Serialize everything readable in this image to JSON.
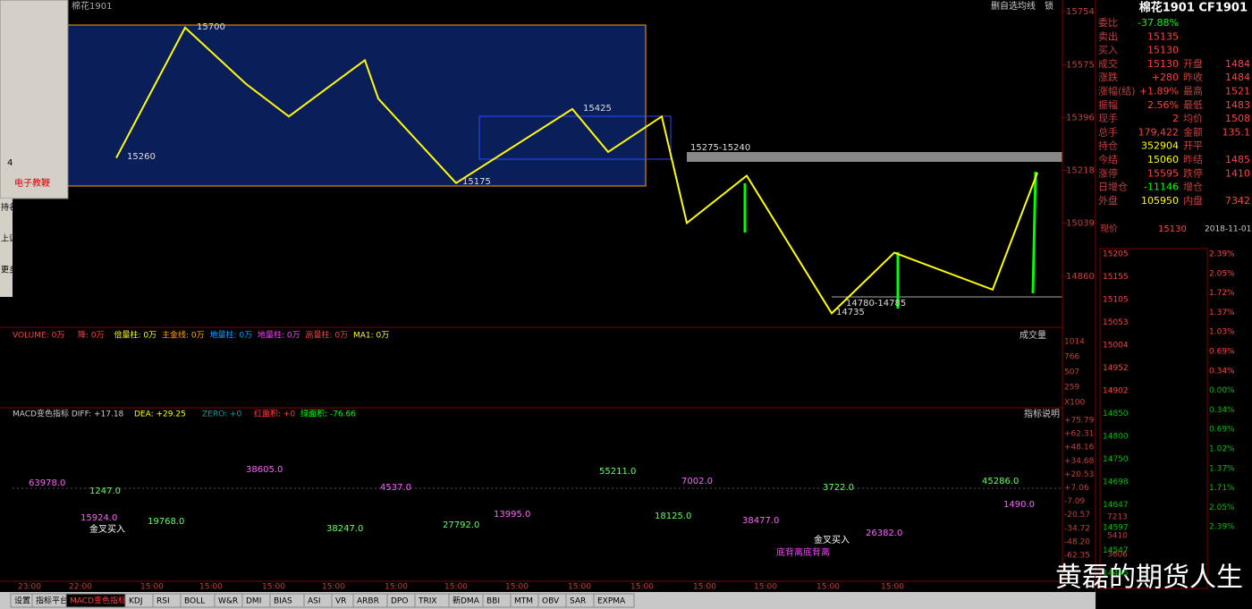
{
  "window": {
    "symbol": "棉花1901",
    "buttons": [
      "删自选",
      "均线",
      "锁"
    ],
    "tool_size": "4",
    "tool_label": "电子教鞭",
    "side_tabs": [
      "持名",
      "上证指数",
      "更多"
    ]
  },
  "price_chart": {
    "yticks": [
      15754,
      15575,
      15396,
      15218,
      15039,
      14860
    ],
    "zigzag": [
      15260,
      15700,
      15510,
      15400,
      15590,
      15460,
      15175,
      15425,
      15280,
      15400,
      15040,
      15200,
      14735,
      14940,
      14815,
      15210
    ],
    "annotations": [
      "15700",
      "15260",
      "15175",
      "15425",
      "15275-15240",
      "14780-14785",
      "14735"
    ]
  },
  "volume": {
    "header": [
      "VOLUME: 0万",
      "降: 0万",
      "倍量柱: 0万",
      "主金线: 0万",
      "地量柱: 0万",
      "地量柱: 0万",
      "高量柱: 0万",
      "MA1: 0万"
    ],
    "button": "成交量",
    "yticks": [
      "1014",
      "766",
      "507",
      "259",
      "X100"
    ]
  },
  "macd": {
    "header": [
      "MACD变色指标 DIFF: +17.18",
      "DEA: +29.25",
      "ZERO: +0",
      "红面积: +0",
      "绿面积: -76.66"
    ],
    "button": "指标说明",
    "yticks": [
      "+75.79",
      "+62.31",
      "+48.16",
      "+34.68",
      "+20.53",
      "+7.06",
      "-7.09",
      "-20.57",
      "-34.72",
      "-48.20",
      "-62.35"
    ],
    "labels": [
      "63978.0",
      "1247.0",
      "15924.0",
      "19768.0",
      "38605.0",
      "38247.0",
      "4537.0",
      "27792.0",
      "13995.0",
      "55211.0",
      "7002.0",
      "18125.0",
      "38477.0",
      "3722.0",
      "26382.0",
      "45286.0",
      "1490.0"
    ],
    "signals": [
      "金叉买入",
      "金叉买入",
      "底背离底背离"
    ]
  },
  "time_axis": [
    "23:00",
    "22:00",
    "15:00",
    "15:00",
    "15:00",
    "15:00",
    "15:00",
    "15:00",
    "15:00",
    "15:00",
    "15:00",
    "15:00",
    "15:00",
    "15:00",
    "15:00"
  ],
  "tabs": [
    "设置",
    "指标平台",
    "MACD变色指标",
    "KDJ",
    "RSI",
    "BOLL",
    "W&R",
    "DMI",
    "BIAS",
    "ASI",
    "VR",
    "ARBR",
    "DPO",
    "TRIX",
    "新DMA",
    "BBI",
    "MTM",
    "OBV",
    "SAR",
    "EXPMA"
  ],
  "quote": {
    "title": "棉花1901 CF1901",
    "rows": [
      [
        "委比",
        "-37.88%"
      ],
      [
        "卖出",
        "15135"
      ],
      [
        "买入",
        "15130"
      ],
      [
        "成交",
        "15130",
        "开盘",
        "1484"
      ],
      [
        "涨跌",
        "+280",
        "昨收",
        "1484"
      ],
      [
        "涨幅(结)",
        "+1.89%",
        "最高",
        "1521"
      ],
      [
        "振幅",
        "2.56%",
        "最低",
        "1483"
      ],
      [
        "现手",
        "2",
        "均价",
        "1508"
      ],
      [
        "总手",
        "179,422",
        "金额",
        "135.1"
      ],
      [
        "持仓",
        "352904",
        "开平",
        ""
      ],
      [
        "今结",
        "15060",
        "昨结",
        "1485"
      ],
      [
        "涨停",
        "15595",
        "跌停",
        "1410"
      ],
      [
        "日增仓",
        "-11146",
        "增仓",
        ""
      ],
      [
        "外盘",
        "105950",
        "内盘",
        "7342"
      ]
    ],
    "last": [
      "现价",
      "15130",
      "2018-11-01,"
    ],
    "mini_left": [
      "15205",
      "15155",
      "15105",
      "15053",
      "15004",
      "14952",
      "14902",
      "14850",
      "14800",
      "14750",
      "14698",
      "14647",
      "14597",
      "14547",
      "14495"
    ],
    "mini_right": [
      "2.39%",
      "2.05%",
      "1.72%",
      "1.37%",
      "1.03%",
      "0.69%",
      "0.34%",
      "0.00%",
      "0.34%",
      "0.69%",
      "1.02%",
      "1.37%",
      "1.71%",
      "2.05%",
      "2.39%"
    ],
    "mini_vol": [
      "7213",
      "5410",
      "3606"
    ]
  },
  "watermark": "黄磊的期货人生"
}
